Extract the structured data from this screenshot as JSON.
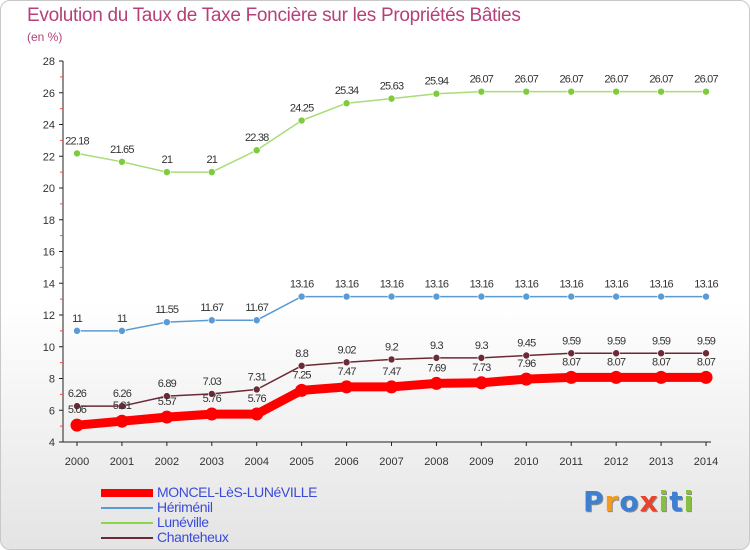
{
  "title": "Evolution du Taux de Taxe Foncière sur les Propriétés Bâties",
  "subtitle": "(en %)",
  "logo": {
    "letters": [
      "P",
      "r",
      "o",
      "x",
      "i",
      "t",
      "i"
    ],
    "colors": [
      "#3d7fd1",
      "#f29b1d",
      "#3d7fd1",
      "#e9432c",
      "#86c13d",
      "#3d7fd1",
      "#86c13d"
    ]
  },
  "chart_data": {
    "type": "line",
    "title": "Evolution du Taux de Taxe Foncière sur les Propriétés Bâties",
    "ylabel": "(en %)",
    "xlabel": "",
    "ylim": [
      4,
      28
    ],
    "yticks": [
      4,
      6,
      8,
      10,
      12,
      14,
      16,
      18,
      20,
      22,
      24,
      26,
      28
    ],
    "x": [
      "2000",
      "2001",
      "2002",
      "2003",
      "2004",
      "2005",
      "2006",
      "2007",
      "2008",
      "2009",
      "2010",
      "2011",
      "2012",
      "2013",
      "2014"
    ],
    "series": [
      {
        "name": "MONCEL-LèS-LUNéVILLE",
        "color": "#ff0000",
        "values": [
          5.06,
          5.31,
          5.57,
          5.76,
          5.76,
          7.25,
          7.47,
          7.47,
          7.69,
          7.73,
          7.96,
          8.07,
          8.07,
          8.07,
          8.07
        ],
        "labels": [
          "5.06",
          "5.31",
          "5.57",
          "5.76",
          "5.76",
          "7.25",
          "7.47",
          "7.47",
          "7.69",
          "7.73",
          "7.96",
          "8.07",
          "8.07",
          "8.07",
          "8.07"
        ]
      },
      {
        "name": "Hériménil",
        "color": "#5b9bd5",
        "values": [
          11,
          11,
          11.55,
          11.67,
          11.67,
          13.16,
          13.16,
          13.16,
          13.16,
          13.16,
          13.16,
          13.16,
          13.16,
          13.16,
          13.16
        ],
        "labels": [
          "11",
          "11",
          "11.55",
          "11.67",
          "11.67",
          "13.16",
          "13.16",
          "13.16",
          "13.16",
          "13.16",
          "13.16",
          "13.16",
          "13.16",
          "13.16",
          "13.16"
        ]
      },
      {
        "name": "Lunéville",
        "color": "#8cd44a",
        "values": [
          22.18,
          21.65,
          21,
          21,
          22.38,
          24.25,
          25.34,
          25.63,
          25.94,
          26.07,
          26.07,
          26.07,
          26.07,
          26.07,
          26.07
        ],
        "labels": [
          "22.18",
          "21.65",
          "21",
          "21",
          "22.38",
          "24.25",
          "25.34",
          "25.63",
          "25.94",
          "26.07",
          "26.07",
          "26.07",
          "26.07",
          "26.07",
          "26.07"
        ]
      },
      {
        "name": "Chanteheux",
        "color": "#6b2a35",
        "values": [
          6.26,
          6.26,
          6.89,
          7.03,
          7.31,
          8.8,
          9.02,
          9.2,
          9.3,
          9.3,
          9.45,
          9.59,
          9.59,
          9.59,
          9.59
        ],
        "labels": [
          "6.26",
          "6.26",
          "6.89",
          "7.03",
          "7.31",
          "8.8",
          "9.02",
          "9.2",
          "9.3",
          "9.3",
          "9.45",
          "9.59",
          "9.59",
          "9.59",
          "9.59"
        ]
      }
    ],
    "legend": "bottom-left",
    "grid": false
  }
}
